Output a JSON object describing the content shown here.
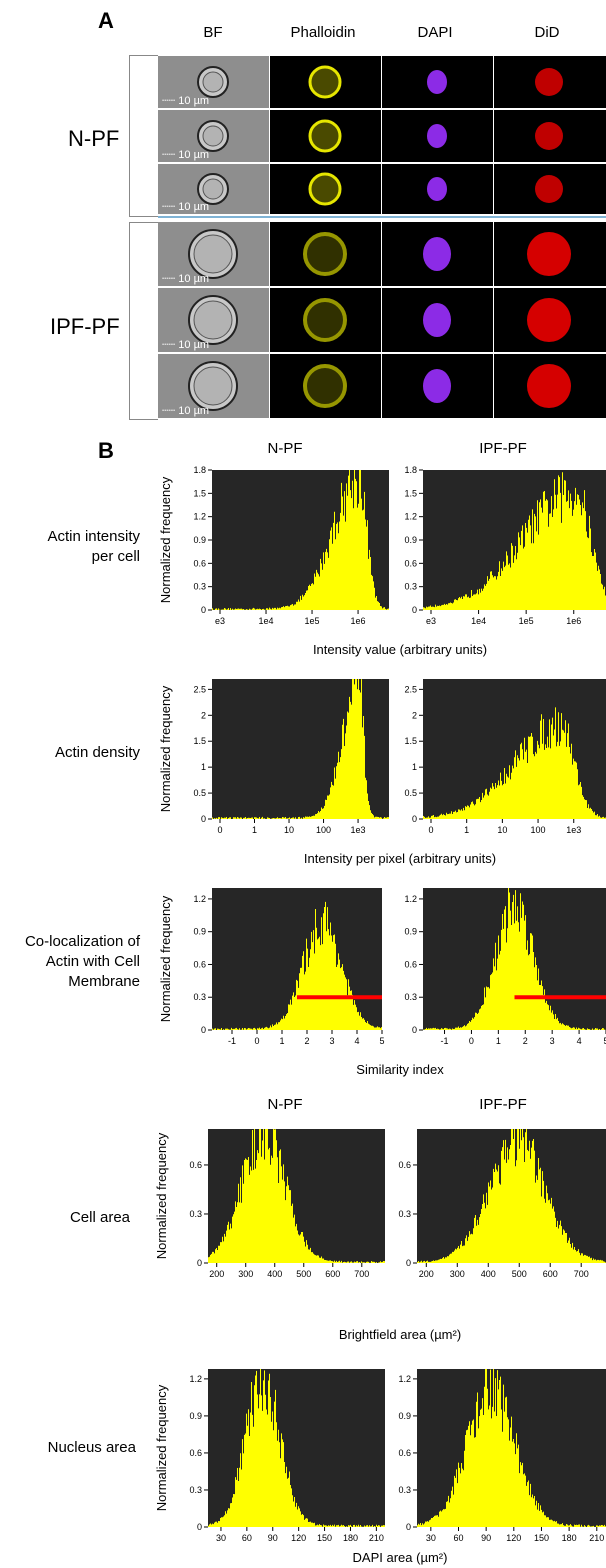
{
  "panel_a": {
    "letter": "A",
    "columns": [
      "BF",
      "Phalloidin",
      "DAPI",
      "DiD"
    ],
    "groups": [
      {
        "label": "N-PF"
      },
      {
        "label": "IPF-PF"
      }
    ],
    "scale_bar": "10 µm"
  },
  "panel_b": {
    "letter": "B",
    "col_titles": [
      "N-PF",
      "IPF-PF"
    ],
    "y_label": "Normalized frequency",
    "rows": [
      {
        "label_lines": [
          "Actin intensity",
          "per cell"
        ],
        "xlabel": "Intensity value (arbitrary units)"
      },
      {
        "label_lines": [
          "Actin density"
        ],
        "xlabel": "Intensity per pixel (arbitrary units)"
      },
      {
        "label_lines": [
          "Co-localization of",
          "Actin with Cell",
          "Membrane"
        ],
        "xlabel": "Similarity index"
      },
      {
        "label_lines": [
          "Cell area"
        ],
        "xlabel": "Brightfield area (µm²)"
      },
      {
        "label_lines": [
          "Nucleus area"
        ],
        "xlabel": "DAPI area (µm²)"
      }
    ],
    "col_titles_2": [
      "N-PF",
      "IPF-PF"
    ]
  },
  "colors": {
    "plot_bg": "#262626",
    "bars": "#ffff00",
    "threshold": "#ff0000"
  },
  "chart_data": [
    {
      "type": "area",
      "title": "",
      "series": [
        {
          "name": "N-PF"
        }
      ],
      "xlabel": "Intensity value (arbitrary units)",
      "ylabel": "Normalized frequency",
      "x_ticks": [
        "e3",
        "1e4",
        "1e5",
        "1e6"
      ],
      "y_ticks": [
        "0",
        "0.3",
        "0.6",
        "0.9",
        "1.2",
        "1.5",
        "1.8"
      ],
      "ylim": [
        0,
        1.8
      ],
      "peak_x": "1e6",
      "peak_y": 1.8
    },
    {
      "type": "area",
      "series": [
        {
          "name": "IPF-PF"
        }
      ],
      "x_ticks": [
        "e3",
        "1e4",
        "1e5",
        "1e6"
      ],
      "y_ticks": [
        "0",
        "0.3",
        "0.6",
        "0.9",
        "1.2",
        "1.5",
        "1.8"
      ],
      "ylim": [
        0,
        1.8
      ],
      "peak_x": "1e6",
      "peak_y": 1.6
    },
    {
      "type": "area",
      "series": [
        {
          "name": "N-PF"
        }
      ],
      "xlabel": "Intensity per pixel (arbitrary units)",
      "x_ticks": [
        "0",
        "1",
        "10",
        "100",
        "1e3"
      ],
      "y_ticks": [
        "0",
        "0.5",
        "1",
        "1.5",
        "2",
        "2.5"
      ],
      "ylim": [
        0,
        2.7
      ],
      "peak_x": "1e3",
      "peak_y": 2.7
    },
    {
      "type": "area",
      "series": [
        {
          "name": "IPF-PF"
        }
      ],
      "x_ticks": [
        "0",
        "1",
        "10",
        "100",
        "1e3"
      ],
      "y_ticks": [
        "0",
        "0.5",
        "1",
        "1.5",
        "2",
        "2.5"
      ],
      "ylim": [
        0,
        2.7
      ],
      "peak_x": "500",
      "peak_y": 1.9
    },
    {
      "type": "area",
      "series": [
        {
          "name": "N-PF"
        }
      ],
      "xlabel": "Similarity index",
      "x_ticks": [
        "-1",
        "0",
        "1",
        "2",
        "3",
        "4",
        "5"
      ],
      "y_ticks": [
        "0",
        "0.3",
        "0.6",
        "0.9",
        "1.2"
      ],
      "xlim": [
        -1.8,
        5
      ],
      "ylim": [
        0,
        1.3
      ],
      "mean": 2.6,
      "peak_y": 1.0,
      "sd": 0.75,
      "threshold": {
        "x_start": 1.6,
        "y": 0.3
      }
    },
    {
      "type": "area",
      "series": [
        {
          "name": "IPF-PF"
        }
      ],
      "x_ticks": [
        "-1",
        "0",
        "1",
        "2",
        "3",
        "4",
        "5"
      ],
      "y_ticks": [
        "0",
        "0.3",
        "0.6",
        "0.9",
        "1.2"
      ],
      "xlim": [
        -1.8,
        5
      ],
      "ylim": [
        0,
        1.3
      ],
      "mean": 1.6,
      "peak_y": 1.15,
      "sd": 0.7,
      "threshold": {
        "x_start": 1.6,
        "y": 0.3
      }
    },
    {
      "type": "area",
      "series": [
        {
          "name": "N-PF"
        }
      ],
      "xlabel": "Brightfield area (µm²)",
      "x_ticks": [
        "200",
        "300",
        "400",
        "500",
        "600",
        "700"
      ],
      "y_ticks": [
        "0",
        "0.3",
        "0.6"
      ],
      "xlim": [
        170,
        780
      ],
      "ylim": [
        0,
        0.82
      ],
      "mean": 360,
      "peak_y": 0.8,
      "sd": 75
    },
    {
      "type": "area",
      "series": [
        {
          "name": "IPF-PF"
        }
      ],
      "x_ticks": [
        "200",
        "300",
        "400",
        "500",
        "600",
        "700"
      ],
      "y_ticks": [
        "0",
        "0.3",
        "0.6"
      ],
      "xlim": [
        170,
        780
      ],
      "ylim": [
        0,
        0.82
      ],
      "mean": 490,
      "peak_y": 0.75,
      "sd": 90
    },
    {
      "type": "area",
      "series": [
        {
          "name": "N-PF"
        }
      ],
      "xlabel": "DAPI area (µm²)",
      "x_ticks": [
        "30",
        "60",
        "90",
        "120",
        "150",
        "180",
        "210"
      ],
      "y_ticks": [
        "0",
        "0.3",
        "0.6",
        "0.9",
        "1.2"
      ],
      "xlim": [
        15,
        220
      ],
      "ylim": [
        0,
        1.28
      ],
      "mean": 78,
      "peak_y": 1.2,
      "sd": 20
    },
    {
      "type": "area",
      "series": [
        {
          "name": "IPF-PF"
        }
      ],
      "x_ticks": [
        "30",
        "60",
        "90",
        "120",
        "150",
        "180",
        "210"
      ],
      "y_ticks": [
        "0",
        "0.3",
        "0.6",
        "0.9",
        "1.2"
      ],
      "xlim": [
        15,
        220
      ],
      "ylim": [
        0,
        1.28
      ],
      "mean": 95,
      "peak_y": 1.12,
      "sd": 26
    }
  ]
}
